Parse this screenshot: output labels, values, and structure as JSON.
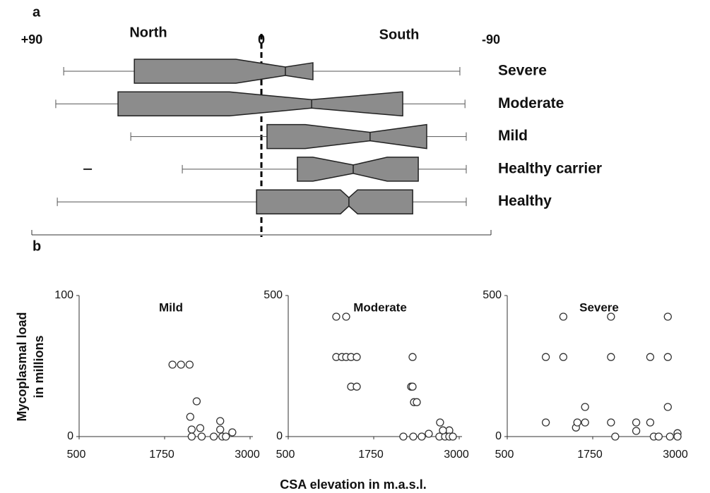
{
  "figure": {
    "panel_labels": [
      "a",
      "b"
    ],
    "xlabel": "CSA elevation in m.a.s.l.",
    "ylabel": [
      "Mycoplasmal load",
      "in millions"
    ]
  },
  "chart_data": [
    {
      "type": "boxplot",
      "annotations": [
        "North",
        "South"
      ],
      "color": "#8c8c8c",
      "xlim": [
        90,
        -90
      ],
      "xticks": [
        {
          "value": 90,
          "label": "+90"
        },
        0,
        -90
      ],
      "categories": [
        "Severe",
        "Moderate",
        "Mild",
        "Healthy carrier",
        "Healthy"
      ],
      "boxes": [
        {
          "max": 77.5,
          "q3": 49.8,
          "median": -9.4,
          "q1": -20.2,
          "min": -77.8,
          "notch": [
            10,
            -29
          ],
          "outliers": []
        },
        {
          "max": 80.6,
          "q3": 56.2,
          "median": -19.7,
          "q1": -55.4,
          "min": -79.8,
          "notch": [
            12.5,
            -55
          ],
          "outliers": []
        },
        {
          "max": 51.2,
          "q3": -2.2,
          "median": -42.6,
          "q1": -64.8,
          "min": -80.3,
          "notch": [
            -17.2,
            -64.8
          ],
          "outliers": []
        },
        {
          "max": 31,
          "q3": -14.1,
          "median": -36,
          "q1": -61.5,
          "min": -80.3,
          "notch": [
            -20.2,
            -49.3
          ],
          "outliers": [
            68.1
          ]
        },
        {
          "max": 80,
          "q3": 1.9,
          "median": -34.3,
          "q1": -59.3,
          "min": -80.3,
          "notch": [
            -31,
            -37.7
          ],
          "outliers": []
        }
      ]
    },
    {
      "type": "scatter",
      "title": "Mild",
      "color": "#ffffff",
      "xlim": [
        500,
        3000
      ],
      "xticks": [
        500,
        1750,
        3000
      ],
      "ylim": [
        0,
        100
      ],
      "yticks": [
        0,
        100
      ],
      "x": [
        1865,
        1990,
        2115,
        2219,
        2125,
        2146,
        2271,
        2146,
        2292,
        2563,
        2563,
        2469,
        2594,
        2646,
        2740
      ],
      "y": [
        51,
        51,
        51,
        25,
        14,
        5,
        6,
        0,
        0,
        11,
        5,
        0,
        0,
        0,
        3
      ]
    },
    {
      "type": "scatter",
      "title": "Moderate",
      "color": "#ffffff",
      "xlim": [
        500,
        3000
      ],
      "xticks": [
        500,
        1750,
        3000
      ],
      "ylim": [
        0,
        500
      ],
      "yticks": [
        0,
        500
      ],
      "x": [
        1202,
        1347,
        1202,
        1285,
        1347,
        1419,
        1502,
        1419,
        1502,
        2318,
        2297,
        2318,
        2339,
        2380,
        2183,
        2328,
        2452,
        2555,
        2710,
        2793,
        2720,
        2855,
        2762,
        2855,
        2907
      ],
      "y": [
        425,
        425,
        282,
        282,
        282,
        282,
        282,
        177,
        177,
        282,
        177,
        177,
        122,
        122,
        0,
        0,
        0,
        10,
        0,
        0,
        50,
        22,
        22,
        0,
        0
      ]
    },
    {
      "type": "scatter",
      "title": "Severe",
      "color": "#ffffff",
      "xlim": [
        500,
        3000
      ],
      "xticks": [
        500,
        1750,
        3000
      ],
      "ylim": [
        0,
        500
      ],
      "yticks": [
        0,
        500
      ],
      "x": [
        1064,
        1064,
        1320,
        1320,
        1505,
        1525,
        1638,
        1638,
        2017,
        2017,
        2017,
        2079,
        2386,
        2386,
        2591,
        2591,
        2643,
        2714,
        2848,
        2848,
        2848,
        2879,
        2990,
        2990
      ],
      "y": [
        282,
        50,
        425,
        282,
        32,
        50,
        105,
        50,
        425,
        282,
        50,
        0,
        50,
        20,
        282,
        50,
        0,
        0,
        282,
        425,
        105,
        0,
        12,
        0
      ]
    }
  ]
}
